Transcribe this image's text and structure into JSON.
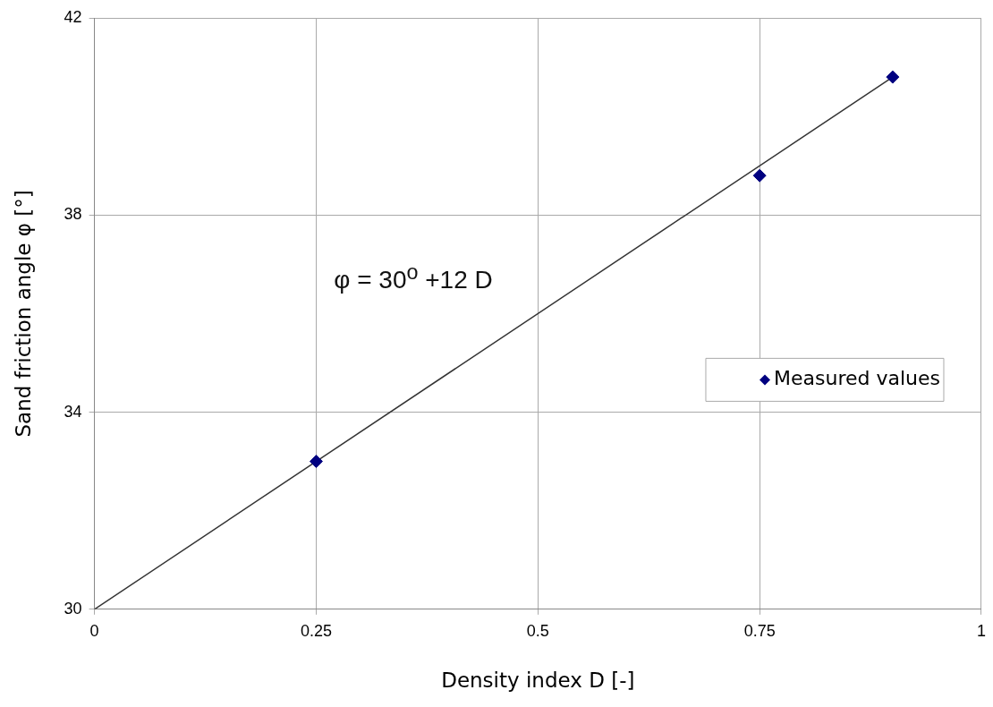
{
  "chart_data": {
    "type": "scatter",
    "xlabel": "Density index D [-]",
    "ylabel": "Sand friction angle φ [°]",
    "xlim": [
      0,
      1
    ],
    "xticks": [
      0,
      0.25,
      0.5,
      0.75,
      1
    ],
    "ylim": [
      30,
      42
    ],
    "yticks": [
      30,
      34,
      38,
      42
    ],
    "grid": true,
    "legend": "right",
    "marker": "diamond",
    "series": [
      {
        "name": "Measured values",
        "color": "#000080",
        "x": [
          0.25,
          0.75,
          0.9
        ],
        "values": [
          33.0,
          38.8,
          40.8
        ]
      },
      {
        "type": "line",
        "color": "#333333",
        "marker": "none",
        "x": [
          0,
          0.9
        ],
        "values": [
          30,
          40.8
        ]
      }
    ],
    "annotations": [
      "φ = 30$^{o}$ +12 D"
    ]
  }
}
